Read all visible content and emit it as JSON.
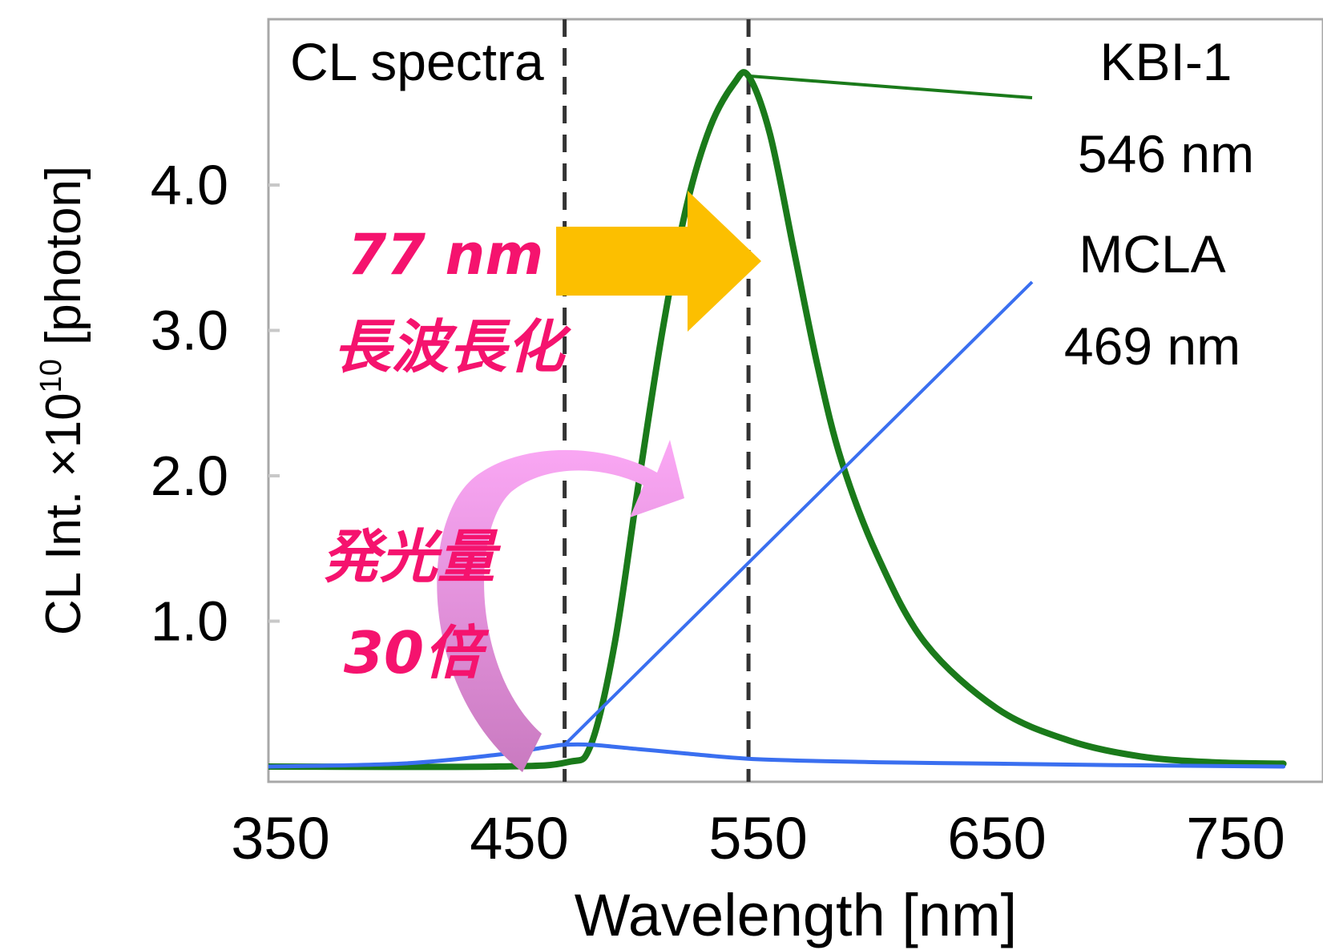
{
  "chart_data": {
    "type": "line",
    "title": "CL spectra",
    "xlabel": "Wavelength [nm]",
    "ylabel_main": "CL Int. ×10",
    "ylabel_exp": "10",
    "ylabel_unit": " [photon]",
    "xlim": [
      345,
      770
    ],
    "ylim": [
      0,
      5.0
    ],
    "xticks": [
      "350",
      "450",
      "550",
      "650",
      "750"
    ],
    "yticks": [
      "1.0",
      "2.0",
      "3.0",
      "4.0"
    ],
    "grid": false,
    "series": [
      {
        "name": "KBI-1",
        "peak_label": "546 nm",
        "color": "#1a7a1a",
        "x": [
          345,
          440,
          470,
          480,
          490,
          500,
          510,
          520,
          530,
          540,
          546,
          555,
          565,
          575,
          585,
          600,
          620,
          650,
          680,
          710,
          740,
          770
        ],
        "y": [
          0.0,
          0.0,
          0.03,
          0.15,
          0.85,
          1.95,
          3.0,
          3.85,
          4.4,
          4.7,
          4.75,
          4.35,
          3.55,
          2.75,
          2.1,
          1.45,
          0.85,
          0.4,
          0.18,
          0.07,
          0.03,
          0.02
        ]
      },
      {
        "name": "MCLA",
        "peak_label": "469 nm",
        "color": "#3a6ff0",
        "x": [
          345,
          400,
          440,
          460,
          469,
          480,
          500,
          520,
          550,
          600,
          650,
          700,
          770
        ],
        "y": [
          0.0,
          0.02,
          0.08,
          0.13,
          0.15,
          0.15,
          0.12,
          0.09,
          0.05,
          0.03,
          0.02,
          0.01,
          0.0
        ]
      }
    ],
    "markers": [
      {
        "x": 469,
        "label": "469 nm"
      },
      {
        "x": 546,
        "label": "546 nm"
      }
    ],
    "annotations": {
      "shift_line1": "77 nm",
      "shift_line2": "長波長化",
      "gain_line1": "発光量",
      "gain_line2": "30倍"
    },
    "colors": {
      "shift_arrow": "#fcbf00",
      "gain_arrow_top": "#fba8f5",
      "gain_arrow_bottom": "#c97ac0",
      "annotation_text": "#f5136e",
      "frame": "#a8a8a8"
    }
  }
}
